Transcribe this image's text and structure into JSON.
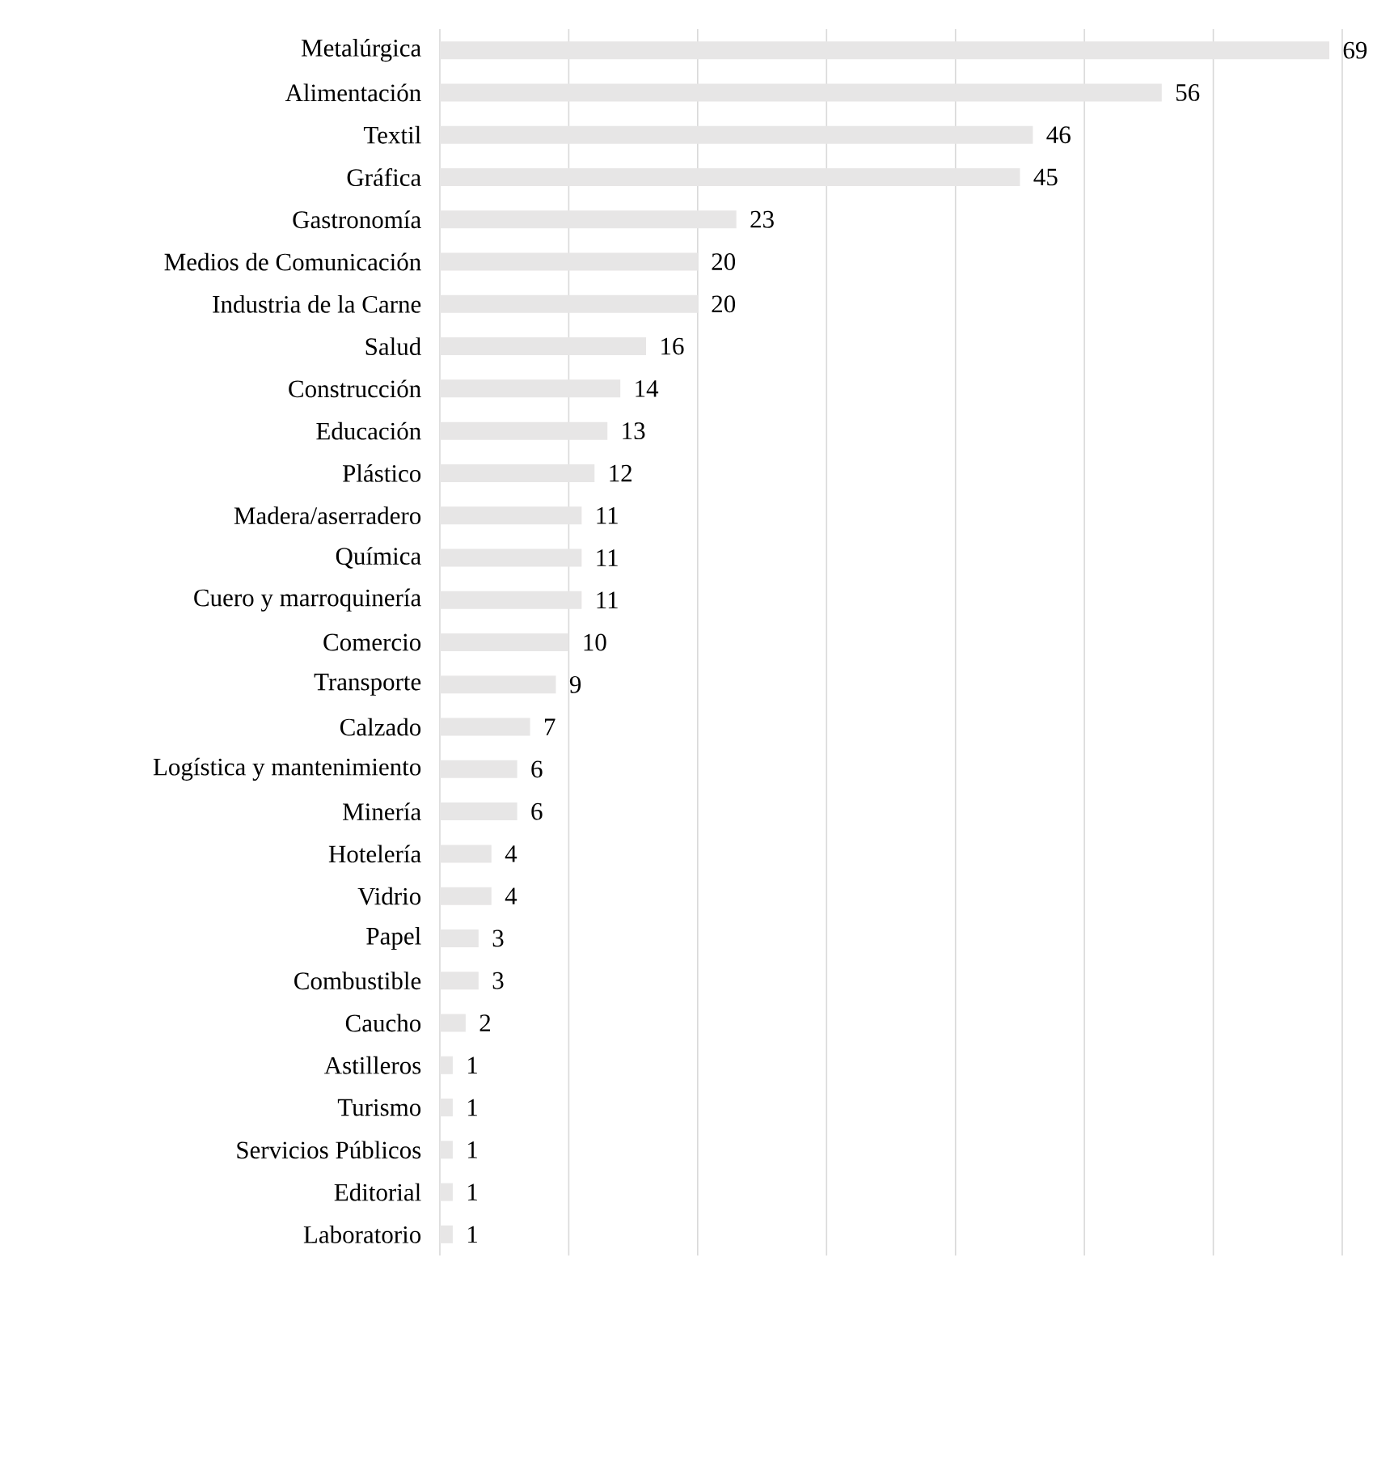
{
  "chart_data": {
    "type": "bar",
    "orientation": "horizontal",
    "categories": [
      "Metalúrgica",
      "Alimentación",
      "Textil",
      "Gráfica",
      "Gastronomía",
      "Medios de Comunicación",
      "Industria de la Carne",
      "Salud",
      "Construcción",
      "Educación",
      "Plástico",
      "Madera/aserradero",
      "Química",
      "Cuero y marroquinería",
      "Comercio",
      "Transporte",
      "Calzado",
      "Logística y mantenimiento",
      "Minería",
      "Hotelería",
      "Vidrio",
      "Papel",
      "Combustible",
      "Caucho",
      "Astilleros",
      "Turismo",
      "Servicios Públicos",
      "Editorial",
      "Laboratorio"
    ],
    "values": [
      69,
      56,
      46,
      45,
      23,
      20,
      20,
      16,
      14,
      13,
      12,
      11,
      11,
      11,
      10,
      9,
      7,
      6,
      6,
      4,
      4,
      3,
      3,
      2,
      1,
      1,
      1,
      1,
      1
    ],
    "color": "#e7e6e6",
    "xlim": [
      0,
      70
    ],
    "xticks": [
      {
        "value": 0,
        "label": null
      },
      {
        "value": 10,
        "label": null
      },
      {
        "value": 20,
        "label": null
      },
      {
        "value": 30,
        "label": null
      },
      {
        "value": 40,
        "label": null
      },
      {
        "value": 50,
        "label": null
      },
      {
        "value": 60,
        "label": null
      },
      {
        "value": 70,
        "label": null
      }
    ],
    "grid": "x",
    "tick_labels": "y",
    "data_labels": true
  }
}
